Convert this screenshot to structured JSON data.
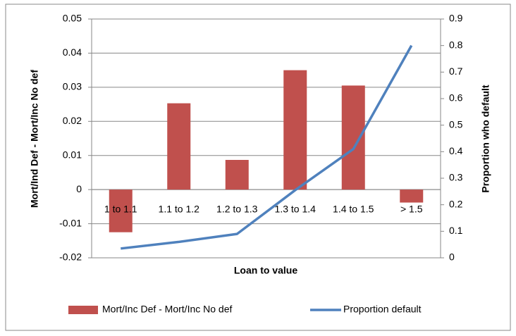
{
  "chart_data": {
    "type": "bar-line",
    "x_label": "Loan to value",
    "y_label": "Mort/Ind Def - Mort/Inc No def",
    "y2_label": "Proportion who default",
    "categories": [
      "1 to 1.1",
      "1.1 to 1.2",
      "1.2 to 1.3",
      "1.3 to 1.4",
      "1.4 to 1.5",
      "> 1.5"
    ],
    "series": [
      {
        "name": "Mort/Inc Def - Mort/Inc No def",
        "type": "bar",
        "color": "#c0504d",
        "values": [
          -0.0125,
          0.0253,
          0.0087,
          0.035,
          0.0305,
          -0.0038
        ]
      },
      {
        "name": "Proportion default",
        "type": "line",
        "axis": "y2",
        "color": "#4f81bd",
        "values": [
          0.035,
          0.06,
          0.09,
          0.255,
          0.41,
          0.8
        ]
      }
    ],
    "ylim": [
      -0.02,
      0.05
    ],
    "yticks": [
      -0.02,
      -0.01,
      0,
      0.01,
      0.02,
      0.03,
      0.04,
      0.05
    ],
    "y2lim": [
      0,
      0.9
    ],
    "y2ticks": [
      0,
      0.1,
      0.2,
      0.3,
      0.4,
      0.5,
      0.6,
      0.7,
      0.8,
      0.9
    ],
    "grid": true,
    "legend": "bottom"
  }
}
